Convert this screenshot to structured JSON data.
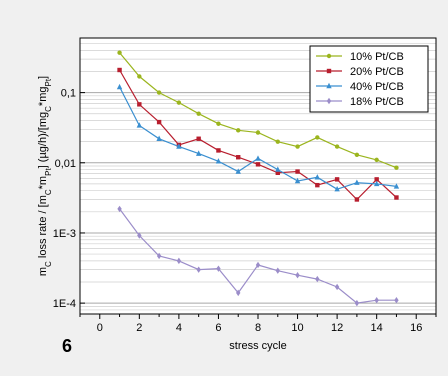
{
  "figure": {
    "label": "6"
  },
  "chart_data": {
    "type": "line",
    "title": "",
    "xlabel": "stress cycle",
    "ylabel_parts": {
      "p1": "m",
      "p1_sub": "C",
      "p2": " loss rate / [m",
      "p2_sub": "C",
      "p3": "*m",
      "p3_sub": "Pt",
      "p4": "] (µg/h)/[mg",
      "p4_sub": "C",
      "p5": "*mg",
      "p5_sub": "Pt",
      "p6": "]"
    },
    "xlim": [
      -1,
      17
    ],
    "ylim": [
      7e-05,
      0.6
    ],
    "y_scale": "log",
    "x_ticks": [
      0,
      2,
      4,
      6,
      8,
      10,
      12,
      14,
      16
    ],
    "x_tick_labels": [
      "0",
      "2",
      "4",
      "6",
      "8",
      "10",
      "12",
      "14",
      "16"
    ],
    "y_ticks": [
      0.0001,
      0.001,
      0.01,
      0.1
    ],
    "y_tick_labels": [
      "1E-4",
      "1E-3",
      "0,01",
      "0,1"
    ],
    "grid": "horizontal-major-and-minor",
    "legend_position": "top-right",
    "series": [
      {
        "name": "10% Pt/CB",
        "color": "#9bb51e",
        "marker": "circle",
        "x": [
          1,
          2,
          3,
          4,
          5,
          6,
          7,
          8,
          9,
          10,
          11,
          12,
          13,
          14,
          15
        ],
        "y": [
          0.37,
          0.17,
          0.1,
          0.072,
          0.05,
          0.036,
          0.029,
          0.027,
          0.02,
          0.017,
          0.023,
          0.017,
          0.013,
          0.011,
          0.0085
        ]
      },
      {
        "name": "20% Pt/CB",
        "color": "#b81e2e",
        "marker": "square",
        "x": [
          1,
          2,
          3,
          4,
          5,
          6,
          7,
          8,
          9,
          10,
          11,
          12,
          13,
          14,
          15
        ],
        "y": [
          0.21,
          0.068,
          0.038,
          0.018,
          0.022,
          0.015,
          0.012,
          0.0095,
          0.0072,
          0.0075,
          0.0048,
          0.0058,
          0.003,
          0.0058,
          0.0032
        ]
      },
      {
        "name": "40% Pt/CB",
        "color": "#3a8fd0",
        "marker": "triangle",
        "x": [
          1,
          2,
          3,
          4,
          5,
          6,
          7,
          8,
          9,
          10,
          11,
          12,
          13,
          14,
          15
        ],
        "y": [
          0.12,
          0.034,
          0.022,
          0.017,
          0.0135,
          0.0105,
          0.0075,
          0.0115,
          0.008,
          0.0055,
          0.0062,
          0.0042,
          0.0052,
          0.005,
          0.0046
        ]
      },
      {
        "name": "18% Pt/CB",
        "color": "#9b8dc9",
        "marker": "diamond",
        "x": [
          1,
          2,
          3,
          4,
          5,
          6,
          7,
          8,
          9,
          10,
          11,
          12,
          13,
          14,
          15
        ],
        "y": [
          0.0022,
          0.00092,
          0.00047,
          0.0004,
          0.0003,
          0.00031,
          0.00014,
          0.00035,
          0.00029,
          0.00025,
          0.00022,
          0.00017,
          0.0001,
          0.00011,
          0.00011
        ]
      }
    ]
  }
}
